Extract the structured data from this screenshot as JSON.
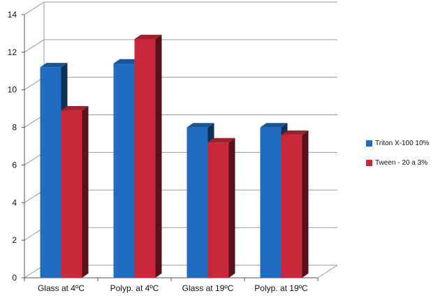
{
  "chart_data": {
    "type": "bar",
    "categories": [
      "Glass at 4ºC",
      "Polyp. at 4ºC",
      "Glass at 19ºC",
      "Polyp. at 19ºC"
    ],
    "series": [
      {
        "name": "Triton X-100 10%",
        "values": [
          11.2,
          11.4,
          8.0,
          8.0
        ],
        "color": "#1f6cc0"
      },
      {
        "name": "Tween - 20 a 3%",
        "values": [
          8.9,
          12.7,
          7.2,
          7.6
        ],
        "color": "#c8283a"
      }
    ],
    "ylim": [
      0,
      14
    ],
    "yticks": [
      "0",
      "2",
      "4",
      "6",
      "8",
      "10",
      "12",
      "14"
    ],
    "grid": true,
    "legend_position": "right",
    "style": "3d-clustered-column"
  }
}
